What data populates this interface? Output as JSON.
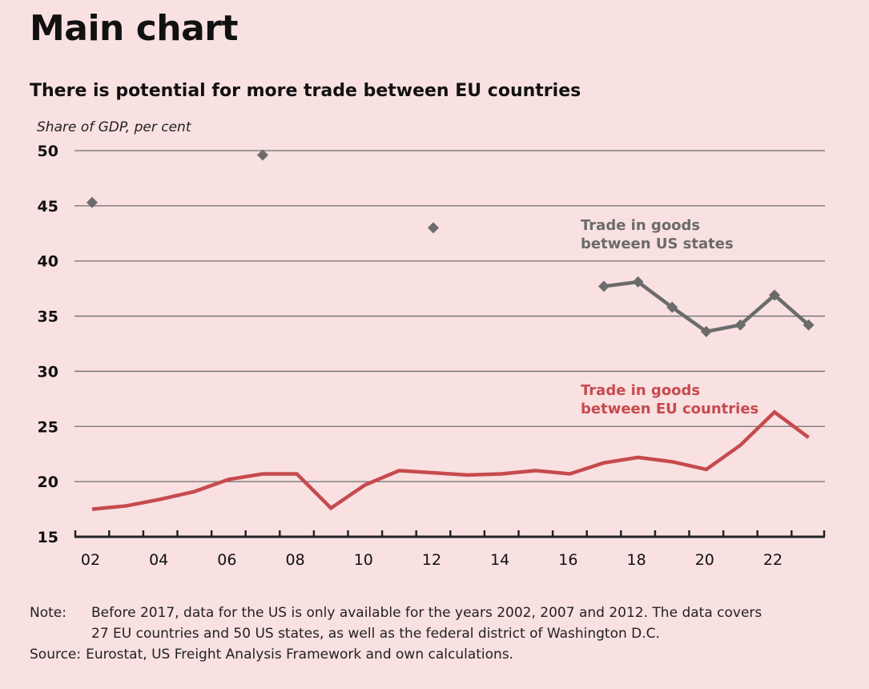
{
  "title": "Main chart",
  "chart_data": {
    "type": "line",
    "title": "There is potential for more trade between EU countries",
    "ylabel": "Share of GDP, per cent",
    "xlabel": "",
    "ylim": [
      15,
      50
    ],
    "yticks": [
      15,
      20,
      25,
      30,
      35,
      40,
      45,
      50
    ],
    "xlim": [
      2002,
      2023
    ],
    "xticks": [
      {
        "v": 2002,
        "l": "02"
      },
      {
        "v": 2004,
        "l": "04"
      },
      {
        "v": 2006,
        "l": "06"
      },
      {
        "v": 2008,
        "l": "08"
      },
      {
        "v": 2010,
        "l": "10"
      },
      {
        "v": 2012,
        "l": "12"
      },
      {
        "v": 2014,
        "l": "14"
      },
      {
        "v": 2016,
        "l": "16"
      },
      {
        "v": 2018,
        "l": "18"
      },
      {
        "v": 2020,
        "l": "20"
      },
      {
        "v": 2022,
        "l": "22"
      }
    ],
    "grid": true,
    "series": [
      {
        "name": "Trade in goods between US states",
        "label_lines": [
          "Trade in goods",
          "between US states"
        ],
        "color": "#6b6b6b",
        "x": [
          2002,
          2007,
          2012,
          2017,
          2018,
          2019,
          2020,
          2021,
          2022,
          2023
        ],
        "values": [
          45.3,
          49.6,
          43.0,
          37.7,
          38.1,
          35.8,
          33.6,
          34.2,
          36.9,
          34.2
        ],
        "line_from": 2017
      },
      {
        "name": "Trade in goods between EU countries",
        "label_lines": [
          "Trade in goods",
          "between EU countries"
        ],
        "color": "#c64a4d",
        "x": [
          2002,
          2003,
          2004,
          2005,
          2006,
          2007,
          2008,
          2009,
          2010,
          2011,
          2012,
          2013,
          2014,
          2015,
          2016,
          2017,
          2018,
          2019,
          2020,
          2021,
          2022,
          2023
        ],
        "values": [
          17.5,
          17.8,
          18.4,
          19.1,
          20.2,
          20.7,
          20.7,
          17.6,
          19.7,
          21.0,
          20.8,
          20.6,
          20.7,
          21.0,
          20.7,
          21.7,
          22.2,
          21.8,
          21.1,
          23.3,
          26.3,
          24.0
        ]
      }
    ]
  },
  "note": {
    "note_label": "Note:",
    "note_line1": "Before 2017, data for the US is only available for the years 2002, 2007 and 2012. The data covers",
    "note_line2": "27 EU countries and 50 US states, as well as the federal district of Washington D.C.",
    "source_label": "Source:",
    "source_text": "Eurostat, US Freight Analysis Framework and own calculations."
  }
}
